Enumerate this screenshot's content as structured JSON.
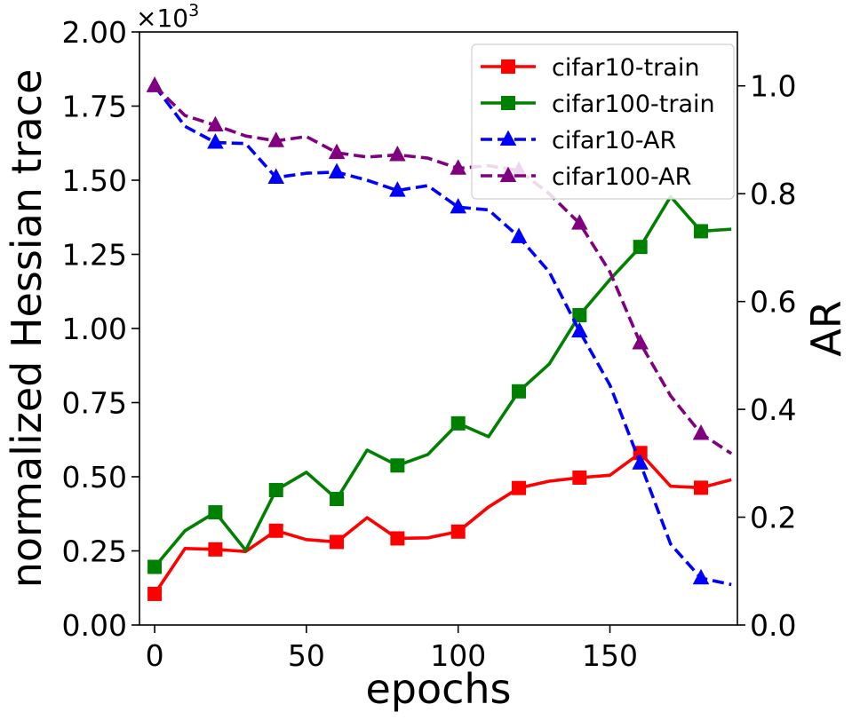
{
  "chart_data": {
    "type": "line",
    "xlabel": "epochs",
    "ylabel_left": "normalized Hessian trace",
    "ylabel_right": "AR",
    "left_axis_multiplier": "×10",
    "left_axis_multiplier_exp": "3",
    "xlim": [
      -5,
      192
    ],
    "ylim_left": [
      0,
      2000
    ],
    "ylim_right": [
      0,
      1.1
    ],
    "x_ticks": [
      0,
      50,
      100,
      150
    ],
    "x_tick_labels": [
      "0",
      "50",
      "100",
      "150"
    ],
    "y_left_ticks": [
      0,
      250,
      500,
      750,
      1000,
      1250,
      1500,
      1750,
      2000
    ],
    "y_left_tick_labels": [
      "0.00",
      "0.25",
      "0.50",
      "0.75",
      "1.00",
      "1.25",
      "1.50",
      "1.75",
      "2.00"
    ],
    "y_right_ticks": [
      0,
      0.2,
      0.4,
      0.6,
      0.8,
      1.0
    ],
    "y_right_tick_labels": [
      "0.0",
      "0.2",
      "0.4",
      "0.6",
      "0.8",
      "1.0"
    ],
    "legend_position": "top-right",
    "grid": false,
    "x": [
      0,
      10,
      20,
      30,
      40,
      50,
      60,
      70,
      80,
      90,
      100,
      110,
      120,
      130,
      140,
      150,
      160,
      170,
      180,
      190
    ],
    "series": [
      {
        "name": "cifar10-train",
        "axis": "left",
        "color": "#ff0000",
        "line_style": "solid",
        "marker": "square",
        "values": [
          105,
          258,
          255,
          248,
          318,
          288,
          280,
          362,
          292,
          294,
          315,
          398,
          462,
          485,
          497,
          505,
          580,
          468,
          463,
          490
        ],
        "marker_every": 2
      },
      {
        "name": "cifar100-train",
        "axis": "left",
        "color": "#008000",
        "line_style": "solid",
        "marker": "square",
        "values": [
          196,
          318,
          380,
          252,
          455,
          515,
          425,
          590,
          538,
          575,
          680,
          635,
          788,
          880,
          1045,
          1165,
          1275,
          1445,
          1328,
          1335
        ],
        "marker_every": 2
      },
      {
        "name": "cifar10-AR",
        "axis": "right",
        "color": "#0000ff",
        "line_style": "dashed",
        "marker": "triangle",
        "values": [
          1.0,
          0.925,
          0.895,
          0.893,
          0.83,
          0.838,
          0.84,
          0.825,
          0.806,
          0.815,
          0.775,
          0.77,
          0.72,
          0.655,
          0.545,
          0.445,
          0.3,
          0.15,
          0.087,
          0.075
        ],
        "marker_every": 2
      },
      {
        "name": "cifar100-AR",
        "axis": "right",
        "color": "#800080",
        "line_style": "dashed",
        "marker": "triangle",
        "values": [
          1.0,
          0.945,
          0.927,
          0.907,
          0.898,
          0.906,
          0.876,
          0.868,
          0.872,
          0.866,
          0.847,
          0.852,
          0.843,
          0.8,
          0.745,
          0.655,
          0.523,
          0.425,
          0.355,
          0.318
        ],
        "marker_every": 2
      }
    ]
  }
}
